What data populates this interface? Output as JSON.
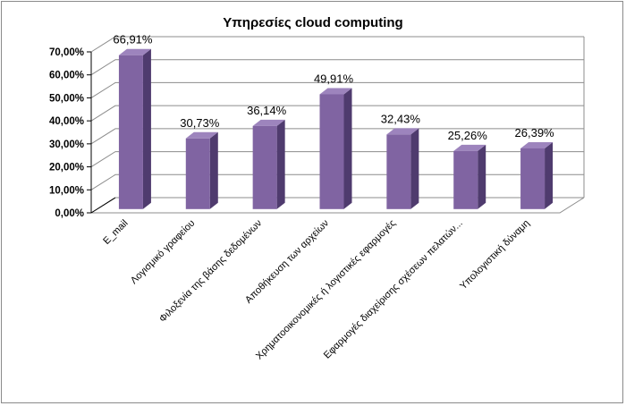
{
  "chart_data": {
    "type": "bar",
    "title": "Υπηρεσίες cloud computing",
    "categories": [
      "E_mail",
      "Λογισμικό γραφείου",
      "Φιλοξενία της βάσης δεδομένων",
      "Αποθήκευση των αρχείων",
      "Χρηματοοικονομικές ή λογιστικές εφαρμογές",
      "Εφαρμογές διαχείρισης σχέσεων πελατών...",
      "Υπολογιστική δύναμη"
    ],
    "values": [
      66.91,
      30.73,
      36.14,
      49.91,
      32.43,
      25.26,
      26.39
    ],
    "value_labels": [
      "66,91%",
      "30,73%",
      "36,14%",
      "49,91%",
      "32,43%",
      "25,26%",
      "26,39%"
    ],
    "y_ticks": [
      "0,00%",
      "10,00%",
      "20,00%",
      "30,00%",
      "40,00%",
      "50,00%",
      "60,00%",
      "70,00%"
    ],
    "ylim": [
      0,
      70
    ],
    "grid": true,
    "legend": "none",
    "colors": {
      "bar_front": "#8064a2",
      "bar_side": "#4f3b6e",
      "bar_top": "#9d84bd",
      "grid": "#8c8c8c",
      "axis": "#000000"
    }
  }
}
